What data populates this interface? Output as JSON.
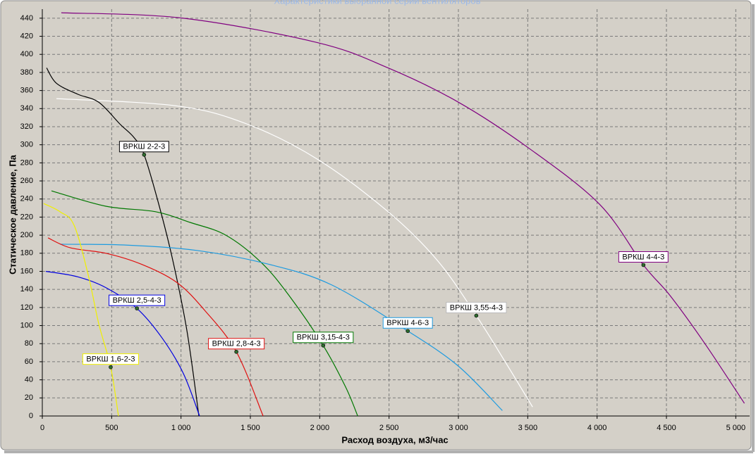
{
  "chart_data": {
    "type": "line",
    "title": "Характеристики выбранной серии вентиляторов",
    "x_label": "Расход воздуха, м3/час",
    "y_label": "Статическое давление, Па",
    "xlim": [
      0,
      5100
    ],
    "ylim": [
      0,
      450
    ],
    "xticks": [
      0,
      500,
      {
        "value": 1000,
        "label": "1 000"
      },
      {
        "value": 1500,
        "label": "1 500"
      },
      {
        "value": 2000,
        "label": "2 000"
      },
      {
        "value": 2500,
        "label": "2 500"
      },
      {
        "value": 3000,
        "label": "3 000"
      },
      {
        "value": 3500,
        "label": "3 500"
      },
      {
        "value": 4000,
        "label": "4 000"
      },
      {
        "value": 4500,
        "label": "4 500"
      },
      {
        "value": 5000,
        "label": "5 000"
      }
    ],
    "yticks": [
      0,
      20,
      40,
      60,
      80,
      100,
      120,
      140,
      160,
      180,
      200,
      220,
      240,
      260,
      280,
      300,
      320,
      340,
      360,
      380,
      400,
      420,
      440
    ],
    "grid": true,
    "series": [
      {
        "name": "ВРКШ 4-4-3",
        "color": "#800080",
        "x": [
          137,
          1017,
          1984,
          2493,
          3001,
          3510,
          4019,
          4334,
          4527,
          4782,
          5062
        ],
        "values": [
          446,
          440,
          413,
          385,
          347,
          296,
          234,
          167,
          133,
          79,
          14
        ],
        "marker": {
          "x": 4334,
          "y": 167
        }
      },
      {
        "name": "ВРКШ 3,55-4-3",
        "color": "#ffffff",
        "x": [
          102,
          967,
          1475,
          1984,
          2493,
          2849,
          3129,
          3357,
          3535
        ],
        "values": [
          351,
          343,
          323,
          284,
          226,
          172,
          111,
          55,
          10
        ],
        "marker": {
          "x": 3129,
          "y": 111
        }
      },
      {
        "name": "ВРКШ 2-2-3",
        "color": "#000000",
        "x": [
          31,
          102,
          254,
          407,
          559,
          661,
          734,
          840,
          941,
          1043,
          1129
        ],
        "values": [
          385,
          368,
          356,
          347,
          323,
          308,
          289,
          234,
          172,
          94,
          0
        ],
        "marker": {
          "x": 734,
          "y": 289
        }
      },
      {
        "name": "ВРКШ 3,15-4-3",
        "color": "#007800",
        "x": [
          66,
          458,
          814,
          1068,
          1323,
          1577,
          1780,
          2025,
          2187,
          2274
        ],
        "values": [
          249,
          232,
          226,
          214,
          200,
          170,
          133,
          78,
          32,
          0
        ],
        "marker": {
          "x": 2025,
          "y": 78
        }
      },
      {
        "name": "ВРКШ 4-6-3",
        "color": "#1e9be0",
        "x": [
          127,
          610,
          1119,
          1628,
          2086,
          2635,
          3001,
          3317
        ],
        "values": [
          190,
          189,
          183,
          168,
          145,
          94,
          55,
          6
        ],
        "marker": {
          "x": 2635,
          "y": 94
        }
      },
      {
        "name": "ВРКШ 2,8-4-3",
        "color": "#e01010",
        "x": [
          41,
          203,
          458,
          712,
          967,
          1170,
          1399,
          1592
        ],
        "values": [
          197,
          186,
          180,
          168,
          148,
          117,
          71,
          0
        ],
        "marker": {
          "x": 1399,
          "y": 71
        }
      },
      {
        "name": "ВРКШ 2,5-4-3",
        "color": "#0000e0",
        "x": [
          25,
          254,
          458,
          682,
          865,
          1017,
          1134
        ],
        "values": [
          160,
          154,
          142,
          119,
          86,
          47,
          0
        ],
        "marker": {
          "x": 682,
          "y": 119
        }
      },
      {
        "name": "ВРКШ 1,6-2-3",
        "color": "#f0f000",
        "x": [
          10,
          127,
          229,
          331,
          407,
          493,
          549
        ],
        "values": [
          235,
          226,
          211,
          156,
          102,
          54,
          0
        ],
        "marker": {
          "x": 493,
          "y": 54
        }
      }
    ]
  }
}
